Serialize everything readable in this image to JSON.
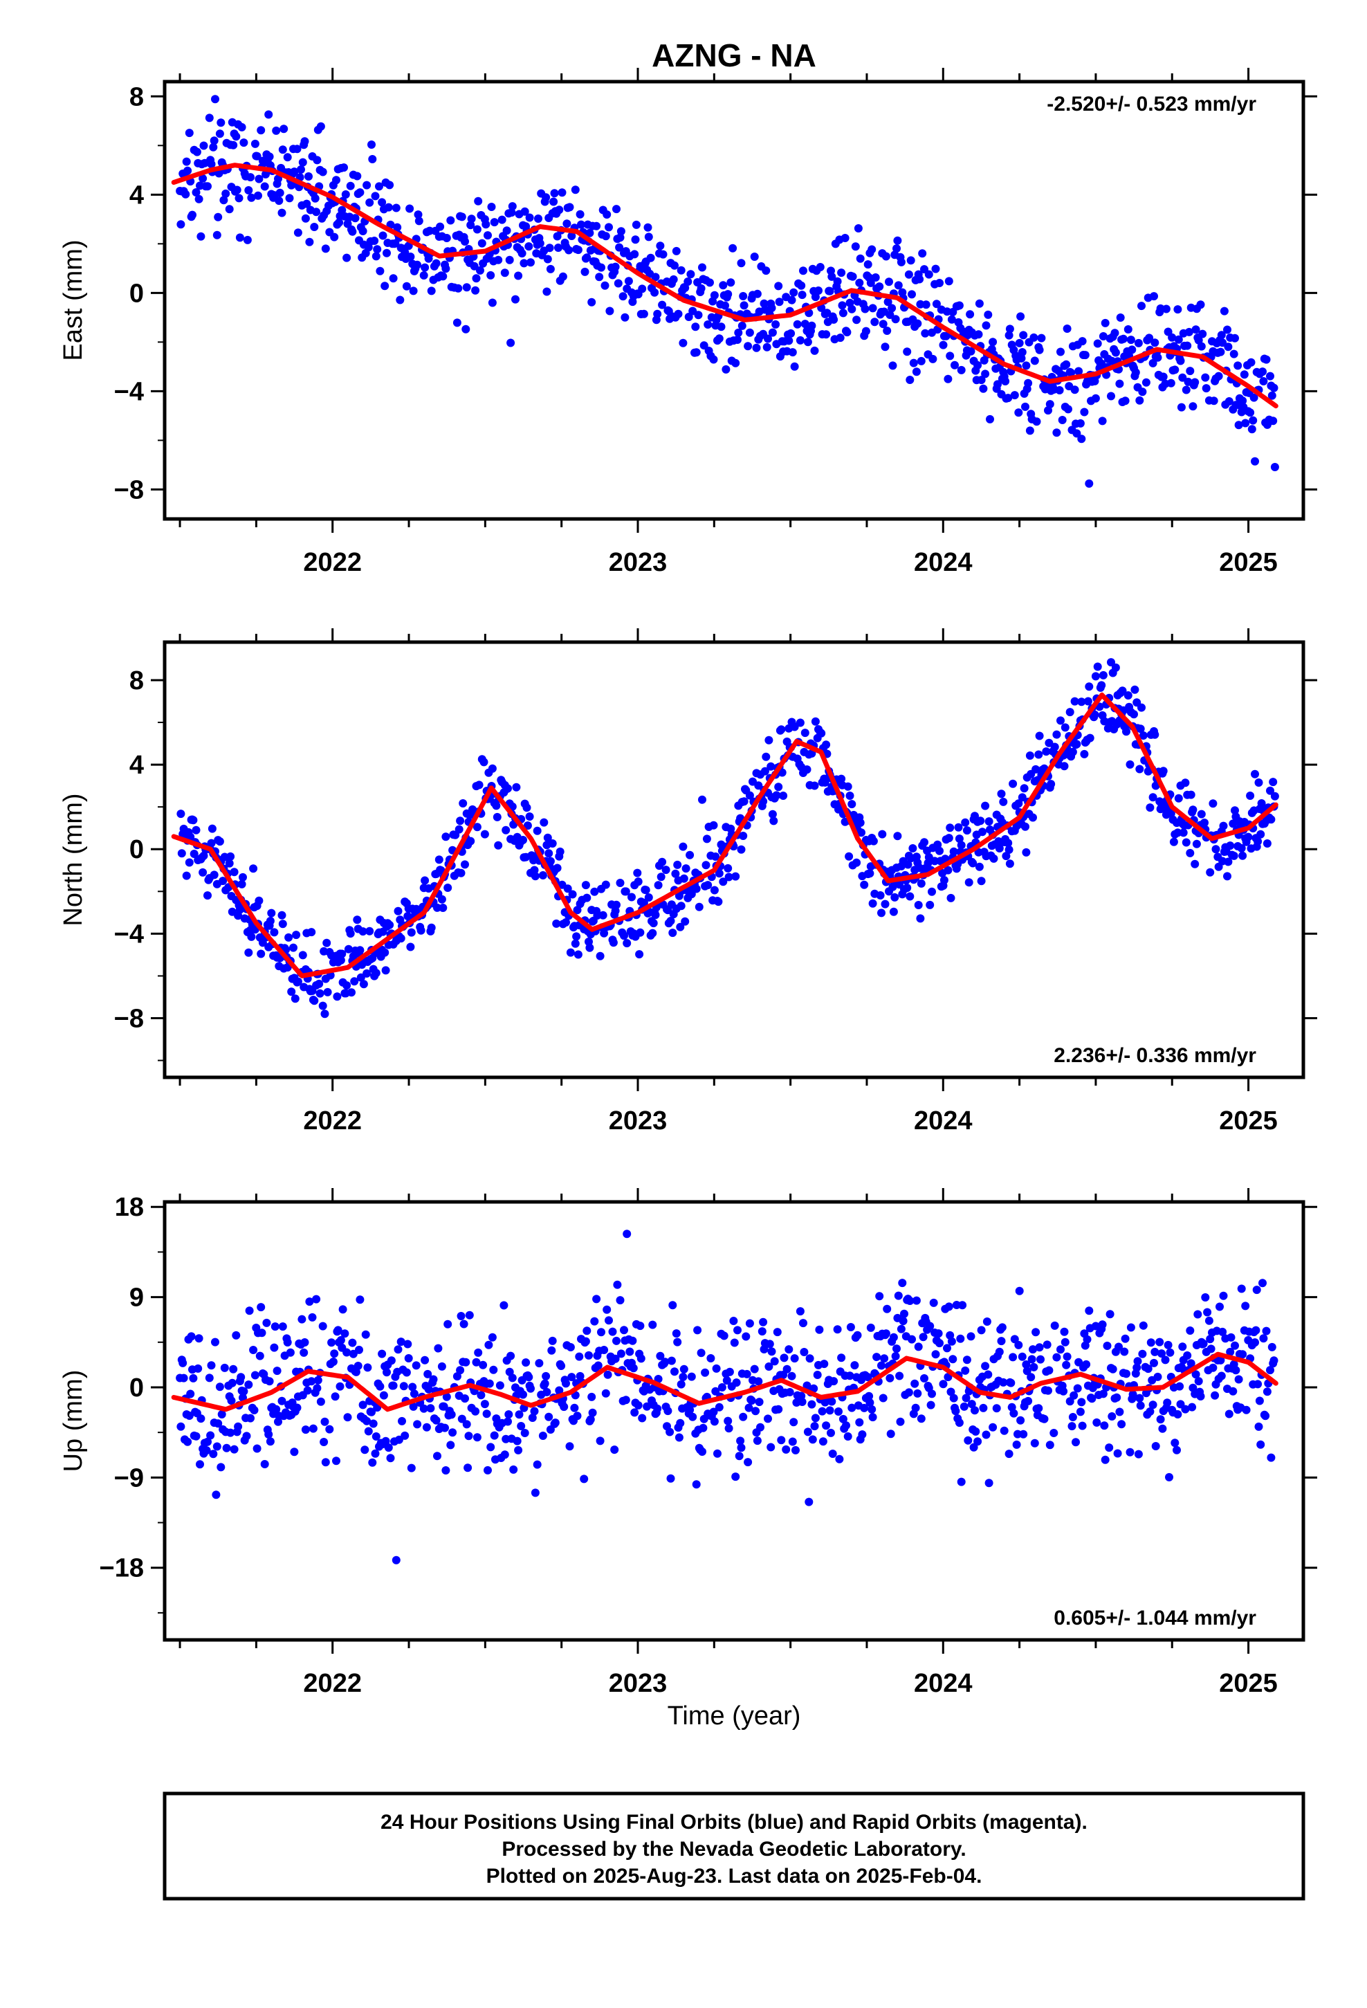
{
  "title": "AZNG - NA",
  "xlabel": "Time (year)",
  "colors": {
    "points": "#0000ff",
    "fit": "#ff0000",
    "axes": "#000000"
  },
  "footer": {
    "line1": "24 Hour Positions Using Final Orbits (blue) and Rapid Orbits (magenta).",
    "line2": "Processed by the Nevada Geodetic Laboratory.",
    "line3": "Plotted on 2025-Aug-23. Last data on 2025-Feb-04."
  },
  "chart_data": [
    {
      "type": "scatter",
      "ylabel": "East (mm)",
      "rate_label": "-2.520+/- 0.523 mm/yr",
      "rate_position": "top-right",
      "xlim": [
        2021.45,
        2025.18
      ],
      "ylim": [
        -9.2,
        8.6
      ],
      "x_ticks": [
        2022,
        2023,
        2024,
        2025
      ],
      "y_ticks": [
        8,
        4,
        0,
        -4,
        -8
      ],
      "y_tick_labels": [
        "8",
        "4",
        "0",
        "−4",
        "−8"
      ],
      "trend": {
        "slope": -2.52,
        "t0": 2023.3,
        "y0": -0.7
      },
      "fit_points": [
        [
          2021.48,
          4.5
        ],
        [
          2021.6,
          5.0
        ],
        [
          2021.68,
          5.2
        ],
        [
          2021.8,
          5.0
        ],
        [
          2022.0,
          3.9
        ],
        [
          2022.15,
          2.8
        ],
        [
          2022.35,
          1.5
        ],
        [
          2022.5,
          1.7
        ],
        [
          2022.68,
          2.7
        ],
        [
          2022.8,
          2.5
        ],
        [
          2023.0,
          0.8
        ],
        [
          2023.15,
          -0.3
        ],
        [
          2023.35,
          -1.1
        ],
        [
          2023.5,
          -0.9
        ],
        [
          2023.7,
          0.1
        ],
        [
          2023.85,
          -0.2
        ],
        [
          2024.0,
          -1.4
        ],
        [
          2024.2,
          -2.9
        ],
        [
          2024.35,
          -3.6
        ],
        [
          2024.5,
          -3.3
        ],
        [
          2024.7,
          -2.3
        ],
        [
          2024.85,
          -2.6
        ],
        [
          2025.0,
          -3.8
        ],
        [
          2025.09,
          -4.6
        ]
      ]
    },
    {
      "type": "scatter",
      "ylabel": "North (mm)",
      "rate_label": "2.236+/- 0.336 mm/yr",
      "rate_position": "bottom-right",
      "xlim": [
        2021.45,
        2025.18
      ],
      "ylim": [
        -10.8,
        9.8
      ],
      "x_ticks": [
        2022,
        2023,
        2024,
        2025
      ],
      "y_ticks": [
        8,
        4,
        0,
        -4,
        -8
      ],
      "y_tick_labels": [
        "8",
        "4",
        "0",
        "−4",
        "−8"
      ],
      "trend": {
        "slope": 2.236,
        "t0": 2023.3,
        "y0": 0.5
      },
      "fit_points": [
        [
          2021.48,
          0.6
        ],
        [
          2021.6,
          0.0
        ],
        [
          2021.75,
          -3.5
        ],
        [
          2021.9,
          -6.0
        ],
        [
          2022.05,
          -5.6
        ],
        [
          2022.3,
          -3.0
        ],
        [
          2022.45,
          1.0
        ],
        [
          2022.52,
          2.9
        ],
        [
          2022.65,
          0.5
        ],
        [
          2022.78,
          -3.0
        ],
        [
          2022.85,
          -3.8
        ],
        [
          2023.0,
          -3.0
        ],
        [
          2023.25,
          -1.0
        ],
        [
          2023.4,
          2.5
        ],
        [
          2023.52,
          5.1
        ],
        [
          2023.6,
          4.6
        ],
        [
          2023.72,
          0.5
        ],
        [
          2023.82,
          -1.5
        ],
        [
          2023.95,
          -1.2
        ],
        [
          2024.1,
          0.0
        ],
        [
          2024.25,
          1.5
        ],
        [
          2024.38,
          4.5
        ],
        [
          2024.52,
          7.3
        ],
        [
          2024.62,
          5.8
        ],
        [
          2024.75,
          2.0
        ],
        [
          2024.88,
          0.5
        ],
        [
          2025.0,
          1.0
        ],
        [
          2025.09,
          2.1
        ]
      ]
    },
    {
      "type": "scatter",
      "ylabel": "Up (mm)",
      "rate_label": "0.605+/- 1.044 mm/yr",
      "rate_position": "bottom-right",
      "xlim": [
        2021.45,
        2025.18
      ],
      "ylim": [
        -25.2,
        18.5
      ],
      "x_ticks": [
        2022,
        2023,
        2024,
        2025
      ],
      "y_ticks": [
        18,
        9,
        0,
        -9,
        -18
      ],
      "y_tick_labels": [
        "18",
        "9",
        "0",
        "−9",
        "−18"
      ],
      "trend": {
        "slope": 0.605,
        "t0": 2023.3,
        "y0": 0.3
      },
      "fit_points": [
        [
          2021.48,
          -1.0
        ],
        [
          2021.65,
          -2.2
        ],
        [
          2021.8,
          -0.5
        ],
        [
          2021.92,
          1.6
        ],
        [
          2022.05,
          1.0
        ],
        [
          2022.18,
          -2.2
        ],
        [
          2022.3,
          -1.0
        ],
        [
          2022.45,
          0.2
        ],
        [
          2022.55,
          -0.7
        ],
        [
          2022.65,
          -1.8
        ],
        [
          2022.78,
          -0.5
        ],
        [
          2022.9,
          2.0
        ],
        [
          2023.05,
          0.5
        ],
        [
          2023.2,
          -1.6
        ],
        [
          2023.35,
          -0.5
        ],
        [
          2023.47,
          0.7
        ],
        [
          2023.6,
          -1.0
        ],
        [
          2023.72,
          -0.4
        ],
        [
          2023.88,
          2.9
        ],
        [
          2024.0,
          2.0
        ],
        [
          2024.12,
          -0.5
        ],
        [
          2024.22,
          -1.0
        ],
        [
          2024.32,
          0.4
        ],
        [
          2024.45,
          1.3
        ],
        [
          2024.6,
          -0.2
        ],
        [
          2024.72,
          0.0
        ],
        [
          2024.9,
          3.3
        ],
        [
          2025.0,
          2.5
        ],
        [
          2025.09,
          0.4
        ]
      ]
    }
  ]
}
